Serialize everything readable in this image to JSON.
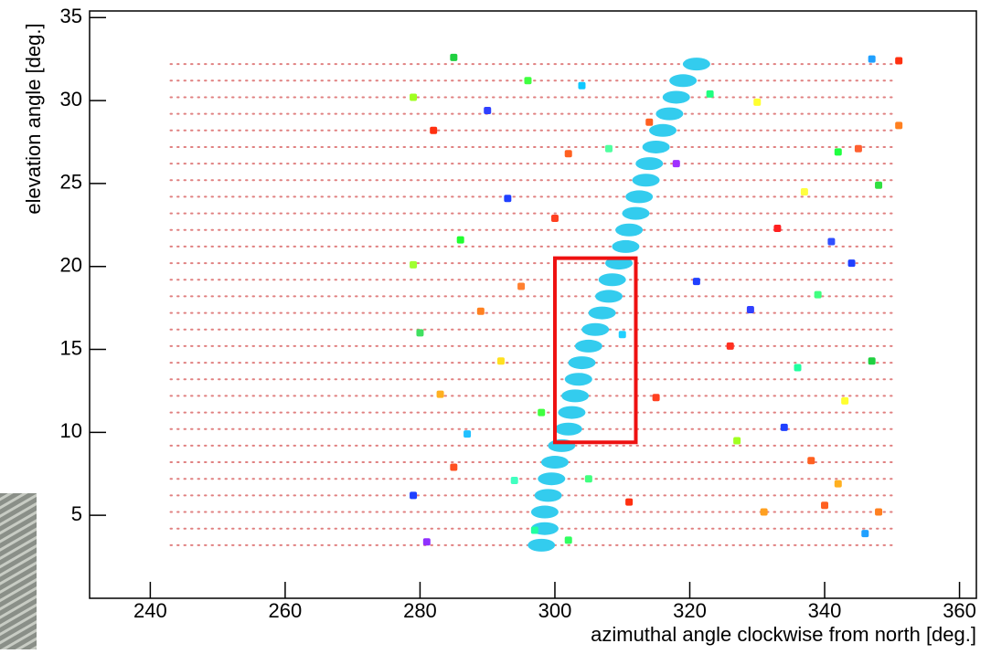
{
  "chart_data": {
    "type": "scatter",
    "xlabel": "azimuthal angle clockwise from north [deg.]",
    "ylabel": "elevation angle [deg.]",
    "xlim": [
      231,
      362.5
    ],
    "ylim": [
      0,
      35.4
    ],
    "xticks": [
      240,
      260,
      280,
      300,
      320,
      340,
      360
    ],
    "yticks": [
      5,
      10,
      15,
      20,
      25,
      30,
      35
    ],
    "scan_rows": {
      "color": "#e08080",
      "x_start": 243,
      "x_end": 350,
      "y": [
        3.2,
        4.2,
        5.2,
        6.2,
        7.2,
        8.2,
        9.2,
        10.2,
        11.2,
        12.2,
        13.2,
        14.2,
        15.2,
        16.2,
        17.2,
        18.2,
        19.2,
        20.2,
        21.2,
        22.2,
        23.2,
        24.2,
        25.2,
        26.2,
        27.2,
        28.2,
        29.2,
        30.2,
        31.2,
        32.2
      ]
    },
    "band": {
      "color": "#33ccee",
      "x": [
        298,
        298.5,
        298.5,
        299,
        299.5,
        300,
        301,
        302,
        302.5,
        303,
        303.5,
        304,
        305,
        306,
        307,
        308,
        308.5,
        309.5,
        310.5,
        311,
        312,
        312.5,
        313.5,
        314,
        315,
        316,
        317,
        318,
        319,
        321
      ],
      "y": [
        3.2,
        4.2,
        5.2,
        6.2,
        7.2,
        8.2,
        9.2,
        10.2,
        11.2,
        12.2,
        13.2,
        14.2,
        15.2,
        16.2,
        17.2,
        18.2,
        19.2,
        20.2,
        21.2,
        22.2,
        23.2,
        24.2,
        25.2,
        26.2,
        27.2,
        28.2,
        29.2,
        30.2,
        31.2,
        32.2
      ]
    },
    "points": {
      "x": [
        285,
        296,
        304,
        314,
        323,
        347,
        351,
        279,
        290,
        302,
        308,
        330,
        342,
        351,
        282,
        293,
        318,
        337,
        345,
        348,
        286,
        300,
        333,
        341,
        279,
        295,
        321,
        339,
        344,
        289,
        310,
        329,
        280,
        292,
        326,
        336,
        347,
        283,
        298,
        315,
        334,
        343,
        287,
        305,
        338,
        279,
        294,
        311,
        342,
        348,
        281,
        297,
        331,
        346,
        285,
        302,
        327,
        340
      ],
      "y": [
        32.6,
        31.2,
        30.9,
        28.7,
        30.4,
        32.5,
        32.4,
        30.2,
        29.4,
        26.8,
        27.1,
        29.9,
        26.9,
        28.5,
        28.2,
        24.1,
        26.2,
        24.5,
        27.1,
        24.9,
        21.6,
        22.9,
        22.3,
        21.5,
        20.1,
        18.8,
        19.1,
        18.3,
        20.2,
        17.3,
        15.9,
        17.4,
        16.0,
        14.3,
        15.2,
        13.9,
        14.3,
        12.3,
        11.2,
        12.1,
        10.3,
        11.9,
        9.9,
        7.2,
        8.3,
        6.2,
        7.1,
        5.8,
        6.9,
        5.2,
        3.4,
        4.1,
        5.2,
        3.9,
        7.9,
        3.5,
        9.5,
        5.6
      ],
      "colors": [
        "#20d040",
        "#40ff40",
        "#10c8ff",
        "#ff6020",
        "#20ff80",
        "#20a0ff",
        "#ff3010",
        "#a0ff20",
        "#3040ff",
        "#ff6020",
        "#50ffa0",
        "#ffff30",
        "#20ff40",
        "#ff8020",
        "#ff3010",
        "#2040ff",
        "#a030ff",
        "#ffff40",
        "#ff6030",
        "#30e040",
        "#20ff30",
        "#ff4020",
        "#ff2020",
        "#3050ff",
        "#a0ff30",
        "#ff8030",
        "#2040ff",
        "#40ff80",
        "#2040ff",
        "#ff8020",
        "#20d0ff",
        "#3040ff",
        "#40e060",
        "#ffe020",
        "#ff3020",
        "#20ffa0",
        "#20d040",
        "#ffb020",
        "#40ff40",
        "#ff4020",
        "#2040ff",
        "#ffff30",
        "#20c0ff",
        "#40ff80",
        "#ff6020",
        "#2040ff",
        "#40ffc0",
        "#ff3010",
        "#ffb020",
        "#ff8020",
        "#9030ff",
        "#20ffa0",
        "#ffa020",
        "#20a0ff",
        "#ff5020",
        "#30ff60",
        "#a0ff20",
        "#ff6020"
      ]
    },
    "highlight_box": {
      "color": "#ee1111",
      "x": [
        300,
        312
      ],
      "y": [
        9.4,
        20.5
      ]
    }
  }
}
